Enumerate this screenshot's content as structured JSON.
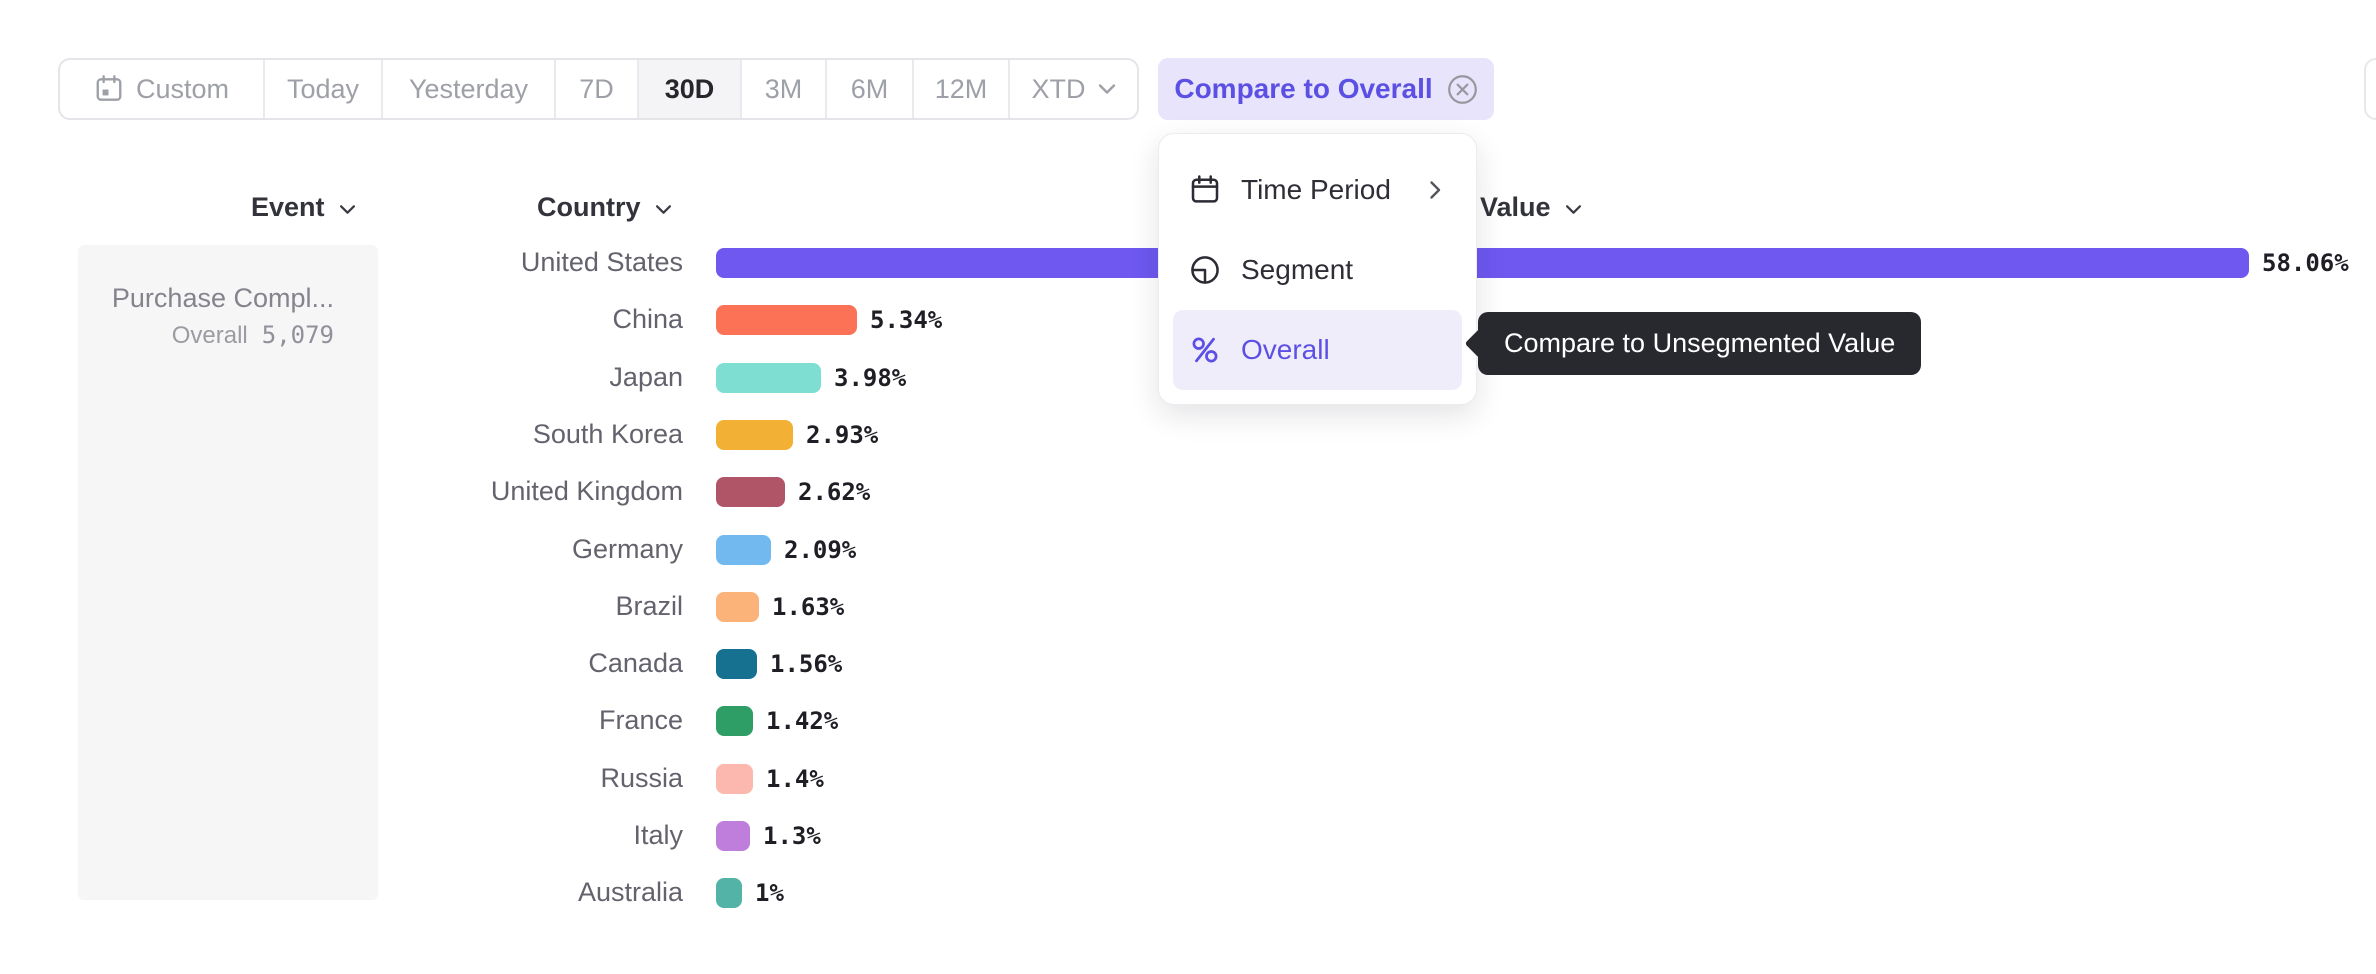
{
  "toolbar": {
    "items": [
      {
        "label": "Custom",
        "icon": "calendar-icon"
      },
      {
        "label": "Today"
      },
      {
        "label": "Yesterday"
      },
      {
        "label": "7D"
      },
      {
        "label": "30D",
        "selected": true
      },
      {
        "label": "3M"
      },
      {
        "label": "6M"
      },
      {
        "label": "12M"
      },
      {
        "label": "XTD",
        "icon": "chevron-down-icon"
      }
    ],
    "selected": "30D"
  },
  "compare_button": {
    "label": "Compare to Overall",
    "icon": "close-circle-icon"
  },
  "headers": {
    "event": "Event",
    "country": "Country",
    "value": "Value"
  },
  "event_panel": {
    "event_name": "Purchase Compl...",
    "overall_label": "Overall",
    "overall_value": "5,079"
  },
  "menu": {
    "items": [
      {
        "label": "Time Period",
        "icon": "calendar-icon",
        "has_submenu": true
      },
      {
        "label": "Segment",
        "icon": "segment-icon"
      },
      {
        "label": "Overall",
        "icon": "percent-icon",
        "selected": true
      }
    ]
  },
  "tooltip": {
    "text": "Compare to Unsegmented Value"
  },
  "chart_data": {
    "type": "bar",
    "orientation": "horizontal",
    "title": "",
    "xlabel": "Value",
    "ylabel": "Country",
    "xlim": [
      0,
      60
    ],
    "grid": false,
    "categories": [
      "United States",
      "China",
      "Japan",
      "South Korea",
      "United Kingdom",
      "Germany",
      "Brazil",
      "Canada",
      "France",
      "Russia",
      "Italy",
      "Australia"
    ],
    "values": [
      58.06,
      5.34,
      3.98,
      2.93,
      2.62,
      2.09,
      1.63,
      1.56,
      1.42,
      1.4,
      1.3,
      1
    ],
    "value_labels": [
      "58.06%",
      "5.34%",
      "3.98%",
      "2.93%",
      "2.62%",
      "2.09%",
      "1.63%",
      "1.56%",
      "1.42%",
      "1.4%",
      "1.3%",
      "1%"
    ],
    "bar_colors": [
      "#6E58F0",
      "#FC7257",
      "#7EDED2",
      "#F2B135",
      "#B05468",
      "#72B9F0",
      "#FBB37A",
      "#16708F",
      "#2E9E66",
      "#FCB7AE",
      "#BF7EDC",
      "#53B3A6"
    ]
  },
  "colors": {
    "accent_purple": "#5B50E3",
    "compare_pill_bg": "#E7E4FB",
    "menu_highlight_bg": "#F0EDFB",
    "tooltip_bg": "#28282F",
    "toolbar_selected_bg": "#F4F4F6",
    "panel_bg": "#F6F6F7",
    "label_gray": "#63636D",
    "toolbar_gray": "#9EA0A8"
  }
}
